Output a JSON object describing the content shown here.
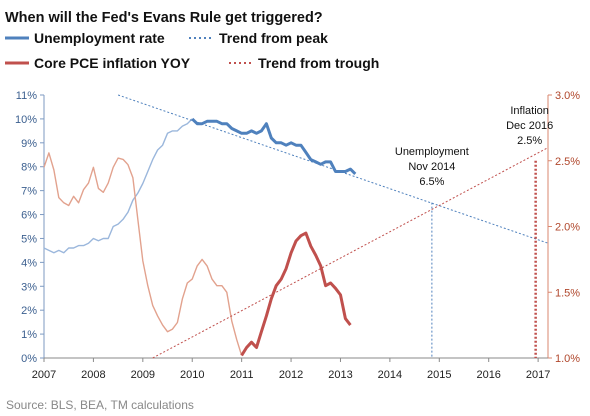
{
  "chart_data": {
    "type": "line",
    "title": "When will the Fed's Evans Rule get triggered?",
    "legend": {
      "placement": "top",
      "items": [
        {
          "label": "Unemployment rate",
          "style": "solid",
          "color": "#4f81bd"
        },
        {
          "label": "Trend from peak",
          "style": "dotted",
          "color": "#4f81bd"
        },
        {
          "label": "Core PCE inflation YOY",
          "style": "solid",
          "color": "#c0504d"
        },
        {
          "label": "Trend from trough",
          "style": "dotted",
          "color": "#c0504d"
        }
      ]
    },
    "x_axis": {
      "range": [
        2007,
        2017.2
      ],
      "ticks": [
        "2007",
        "2008",
        "2009",
        "2010",
        "2011",
        "2012",
        "2013",
        "2014",
        "2015",
        "2016",
        "2017"
      ]
    },
    "y_left": {
      "range": [
        0,
        11
      ],
      "ticks": [
        "0%",
        "1%",
        "2%",
        "3%",
        "4%",
        "5%",
        "6%",
        "7%",
        "8%",
        "9%",
        "10%",
        "11%"
      ]
    },
    "y_right": {
      "range": [
        1.0,
        3.0
      ],
      "ticks": [
        "1.0%",
        "1.5%",
        "2.0%",
        "2.5%",
        "3.0%"
      ]
    },
    "grid": false,
    "series": [
      {
        "name": "Unemployment rate",
        "axis": "left",
        "color": "#4f81bd",
        "data": [
          [
            2007.0,
            4.6
          ],
          [
            2007.1,
            4.5
          ],
          [
            2007.2,
            4.4
          ],
          [
            2007.3,
            4.5
          ],
          [
            2007.4,
            4.4
          ],
          [
            2007.5,
            4.6
          ],
          [
            2007.6,
            4.6
          ],
          [
            2007.7,
            4.7
          ],
          [
            2007.8,
            4.7
          ],
          [
            2007.9,
            4.8
          ],
          [
            2008.0,
            5.0
          ],
          [
            2008.1,
            4.9
          ],
          [
            2008.2,
            5.0
          ],
          [
            2008.3,
            5.0
          ],
          [
            2008.4,
            5.5
          ],
          [
            2008.5,
            5.6
          ],
          [
            2008.6,
            5.8
          ],
          [
            2008.7,
            6.1
          ],
          [
            2008.8,
            6.6
          ],
          [
            2008.9,
            6.9
          ],
          [
            2009.0,
            7.3
          ],
          [
            2009.1,
            7.8
          ],
          [
            2009.2,
            8.3
          ],
          [
            2009.3,
            8.7
          ],
          [
            2009.4,
            8.9
          ],
          [
            2009.5,
            9.4
          ],
          [
            2009.6,
            9.5
          ],
          [
            2009.7,
            9.5
          ],
          [
            2009.8,
            9.7
          ],
          [
            2009.9,
            9.8
          ],
          [
            2010.0,
            10.0
          ],
          [
            2010.1,
            9.8
          ],
          [
            2010.2,
            9.8
          ],
          [
            2010.3,
            9.9
          ],
          [
            2010.4,
            9.9
          ],
          [
            2010.5,
            9.9
          ],
          [
            2010.6,
            9.8
          ],
          [
            2010.7,
            9.8
          ],
          [
            2010.8,
            9.6
          ],
          [
            2010.9,
            9.5
          ],
          [
            2011.0,
            9.4
          ],
          [
            2011.1,
            9.4
          ],
          [
            2011.2,
            9.5
          ],
          [
            2011.3,
            9.4
          ],
          [
            2011.4,
            9.5
          ],
          [
            2011.5,
            9.8
          ],
          [
            2011.6,
            9.2
          ],
          [
            2011.7,
            9.0
          ],
          [
            2011.8,
            9.0
          ],
          [
            2011.9,
            8.9
          ],
          [
            2012.0,
            9.0
          ],
          [
            2012.1,
            8.9
          ],
          [
            2012.2,
            8.9
          ],
          [
            2012.3,
            8.6
          ],
          [
            2012.4,
            8.3
          ],
          [
            2012.5,
            8.2
          ],
          [
            2012.6,
            8.1
          ],
          [
            2012.7,
            8.2
          ],
          [
            2012.8,
            8.2
          ],
          [
            2012.9,
            7.8
          ],
          [
            2013.0,
            7.8
          ],
          [
            2013.1,
            7.8
          ],
          [
            2013.2,
            7.9
          ],
          [
            2013.3,
            7.7
          ]
        ]
      },
      {
        "name": "Trend from peak",
        "axis": "left",
        "color": "#4f81bd",
        "data": [
          [
            2008.5,
            11.0
          ],
          [
            2017.2,
            4.8
          ]
        ]
      },
      {
        "name": "Core PCE inflation YOY",
        "axis": "right",
        "color": "#c0504d",
        "data": [
          [
            2007.0,
            2.45
          ],
          [
            2007.1,
            2.56
          ],
          [
            2007.2,
            2.43
          ],
          [
            2007.3,
            2.22
          ],
          [
            2007.4,
            2.18
          ],
          [
            2007.5,
            2.16
          ],
          [
            2007.6,
            2.23
          ],
          [
            2007.7,
            2.18
          ],
          [
            2007.8,
            2.28
          ],
          [
            2007.9,
            2.33
          ],
          [
            2008.0,
            2.45
          ],
          [
            2008.1,
            2.29
          ],
          [
            2008.2,
            2.26
          ],
          [
            2008.3,
            2.33
          ],
          [
            2008.4,
            2.45
          ],
          [
            2008.5,
            2.52
          ],
          [
            2008.6,
            2.51
          ],
          [
            2008.7,
            2.47
          ],
          [
            2008.8,
            2.37
          ],
          [
            2008.9,
            2.05
          ],
          [
            2009.0,
            1.74
          ],
          [
            2009.1,
            1.55
          ],
          [
            2009.2,
            1.4
          ],
          [
            2009.3,
            1.32
          ],
          [
            2009.4,
            1.25
          ],
          [
            2009.5,
            1.2
          ],
          [
            2009.6,
            1.22
          ],
          [
            2009.7,
            1.27
          ],
          [
            2009.8,
            1.45
          ],
          [
            2009.9,
            1.57
          ],
          [
            2010.0,
            1.6
          ],
          [
            2010.1,
            1.7
          ],
          [
            2010.2,
            1.75
          ],
          [
            2010.3,
            1.7
          ],
          [
            2010.4,
            1.6
          ],
          [
            2010.5,
            1.55
          ],
          [
            2010.6,
            1.55
          ],
          [
            2010.7,
            1.5
          ],
          [
            2010.8,
            1.28
          ],
          [
            2010.9,
            1.14
          ],
          [
            2011.0,
            1.02
          ],
          [
            2011.1,
            1.08
          ],
          [
            2011.2,
            1.12
          ],
          [
            2011.3,
            1.08
          ],
          [
            2011.4,
            1.2
          ],
          [
            2011.5,
            1.32
          ],
          [
            2011.6,
            1.45
          ],
          [
            2011.7,
            1.55
          ],
          [
            2011.8,
            1.6
          ],
          [
            2011.9,
            1.68
          ],
          [
            2012.0,
            1.8
          ],
          [
            2012.1,
            1.89
          ],
          [
            2012.2,
            1.93
          ],
          [
            2012.3,
            1.95
          ],
          [
            2012.4,
            1.85
          ],
          [
            2012.5,
            1.78
          ],
          [
            2012.6,
            1.7
          ],
          [
            2012.7,
            1.55
          ],
          [
            2012.8,
            1.57
          ],
          [
            2012.9,
            1.53
          ],
          [
            2013.0,
            1.48
          ],
          [
            2013.1,
            1.3
          ],
          [
            2013.2,
            1.25
          ]
        ]
      },
      {
        "name": "Trend from trough",
        "axis": "right",
        "color": "#c0504d",
        "data": [
          [
            2009.2,
            1.0
          ],
          [
            2017.2,
            2.6
          ]
        ]
      }
    ],
    "annotations": [
      {
        "lines": [
          "Unemployment",
          "Nov 2014",
          "6.5%"
        ],
        "x": 2014.85,
        "y_left": 6.5,
        "color": "#4f81bd"
      },
      {
        "lines": [
          "Inflation",
          "Dec 2016",
          "2.5%"
        ],
        "x": 2016.95,
        "y_right": 2.5,
        "color": "#c0504d"
      }
    ]
  },
  "source": "Source: BLS, BEA, TM calculations"
}
